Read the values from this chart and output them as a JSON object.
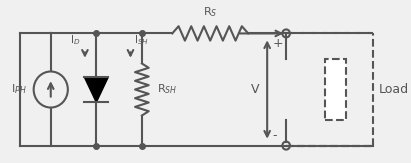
{
  "bg_color": "#f0f0f0",
  "line_color": "#555555",
  "dashed_color": "#555555",
  "lw": 1.5,
  "fig_w": 4.11,
  "fig_h": 1.63,
  "labels": {
    "IPH": "I$_{PH}$",
    "ID": "I$_D$",
    "ISH": "I$_{SH}$",
    "RS": "R$_S$",
    "RSH": "R$_{SH}$",
    "V": "V",
    "Load": "Load",
    "plus": "+",
    "minus": "-"
  }
}
